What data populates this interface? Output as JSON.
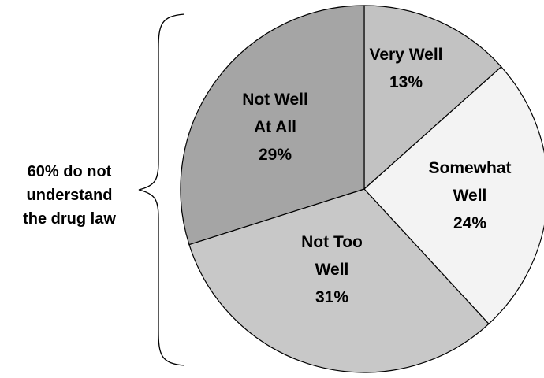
{
  "chart_data": {
    "type": "pie",
    "slices": [
      {
        "label_lines": [
          "Very Well",
          "13%"
        ],
        "value": 13,
        "color": "#c2c2c2"
      },
      {
        "label_lines": [
          "Somewhat",
          "Well",
          "24%"
        ],
        "value": 24,
        "color": "#f3f3f3"
      },
      {
        "label_lines": [
          "Not Too",
          "Well",
          "31%"
        ],
        "value": 31,
        "color": "#c8c8c8"
      },
      {
        "label_lines": [
          "Not Well",
          "At All",
          "29%"
        ],
        "value": 29,
        "color": "#a5a5a5"
      }
    ],
    "start_angle": "12 o'clock",
    "direction": "clockwise",
    "annotation": {
      "lines": [
        "60% do not",
        "understand",
        "the drug law"
      ],
      "brackets": [
        "Not Too Well",
        "Not Well At All"
      ]
    }
  }
}
